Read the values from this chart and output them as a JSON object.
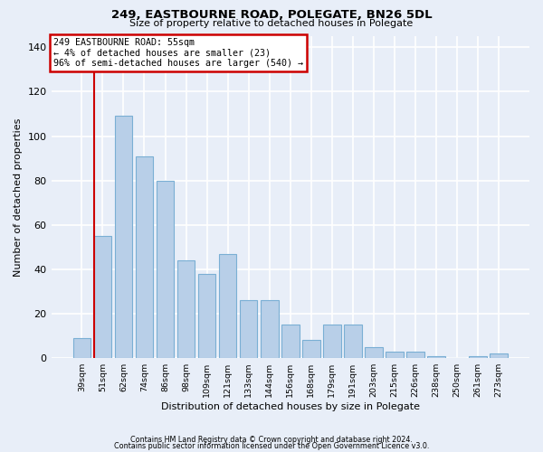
{
  "title1": "249, EASTBOURNE ROAD, POLEGATE, BN26 5DL",
  "title2": "Size of property relative to detached houses in Polegate",
  "xlabel": "Distribution of detached houses by size in Polegate",
  "ylabel": "Number of detached properties",
  "categories": [
    "39sqm",
    "51sqm",
    "62sqm",
    "74sqm",
    "86sqm",
    "98sqm",
    "109sqm",
    "121sqm",
    "133sqm",
    "144sqm",
    "156sqm",
    "168sqm",
    "179sqm",
    "191sqm",
    "203sqm",
    "215sqm",
    "226sqm",
    "238sqm",
    "250sqm",
    "261sqm",
    "273sqm"
  ],
  "values": [
    9,
    55,
    109,
    91,
    80,
    44,
    38,
    47,
    26,
    26,
    15,
    8,
    15,
    15,
    5,
    3,
    3,
    1,
    0,
    1,
    2
  ],
  "bar_color": "#b8cfe8",
  "bar_edge_color": "#7aafd4",
  "annotation_text_line1": "249 EASTBOURNE ROAD: 55sqm",
  "annotation_text_line2": "← 4% of detached houses are smaller (23)",
  "annotation_text_line3": "96% of semi-detached houses are larger (540) →",
  "annotation_box_facecolor": "#ffffff",
  "annotation_box_edgecolor": "#cc0000",
  "vline_color": "#cc0000",
  "background_color": "#e8eef8",
  "grid_color": "#ffffff",
  "ylim_max": 145,
  "yticks": [
    0,
    20,
    40,
    60,
    80,
    100,
    120,
    140
  ],
  "footnote1": "Contains HM Land Registry data © Crown copyright and database right 2024.",
  "footnote2": "Contains public sector information licensed under the Open Government Licence v3.0."
}
